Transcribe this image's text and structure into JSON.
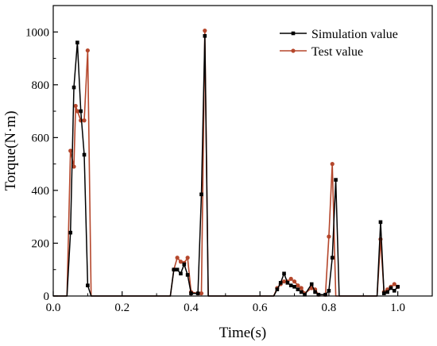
{
  "chart_data": {
    "type": "line",
    "xlabel": "Time(s)",
    "ylabel": "Torque(N·m)",
    "xlim": [
      0.0,
      1.1
    ],
    "ylim": [
      0,
      1100
    ],
    "xticks": [
      0.0,
      0.2,
      0.4,
      0.6,
      0.8,
      1.0
    ],
    "xtick_labels": [
      "0.0",
      "0.2",
      "0.4",
      "0.6",
      "0.8",
      "1.0"
    ],
    "yticks": [
      0,
      200,
      400,
      600,
      800,
      1000
    ],
    "ytick_labels": [
      "0",
      "200",
      "400",
      "600",
      "800",
      "1000"
    ],
    "grid": false,
    "legend_position": "top-right",
    "series": [
      {
        "name": "Simulation value",
        "color": "#000000",
        "marker": "square",
        "points": [
          [
            0.0,
            0
          ],
          [
            0.04,
            0
          ],
          [
            0.05,
            240
          ],
          [
            0.06,
            790
          ],
          [
            0.07,
            960
          ],
          [
            0.08,
            700
          ],
          [
            0.09,
            535
          ],
          [
            0.1,
            40
          ],
          [
            0.11,
            0
          ],
          [
            0.34,
            0
          ],
          [
            0.35,
            100
          ],
          [
            0.36,
            100
          ],
          [
            0.37,
            85
          ],
          [
            0.38,
            120
          ],
          [
            0.39,
            80
          ],
          [
            0.4,
            10
          ],
          [
            0.42,
            10
          ],
          [
            0.43,
            385
          ],
          [
            0.44,
            985
          ],
          [
            0.45,
            0
          ],
          [
            0.64,
            0
          ],
          [
            0.65,
            25
          ],
          [
            0.66,
            50
          ],
          [
            0.67,
            85
          ],
          [
            0.68,
            50
          ],
          [
            0.69,
            40
          ],
          [
            0.7,
            35
          ],
          [
            0.71,
            25
          ],
          [
            0.72,
            15
          ],
          [
            0.73,
            5
          ],
          [
            0.75,
            45
          ],
          [
            0.76,
            15
          ],
          [
            0.77,
            5
          ],
          [
            0.79,
            5
          ],
          [
            0.8,
            20
          ],
          [
            0.81,
            145
          ],
          [
            0.82,
            440
          ],
          [
            0.83,
            0
          ],
          [
            0.94,
            0
          ],
          [
            0.95,
            280
          ],
          [
            0.96,
            10
          ],
          [
            0.97,
            15
          ],
          [
            0.98,
            30
          ],
          [
            0.99,
            20
          ],
          [
            1.0,
            35
          ]
        ]
      },
      {
        "name": "Test value",
        "color": "#b5472c",
        "marker": "circle",
        "points": [
          [
            0.0,
            0
          ],
          [
            0.04,
            0
          ],
          [
            0.05,
            550
          ],
          [
            0.06,
            490
          ],
          [
            0.065,
            720
          ],
          [
            0.07,
            700
          ],
          [
            0.08,
            665
          ],
          [
            0.09,
            665
          ],
          [
            0.1,
            930
          ],
          [
            0.11,
            0
          ],
          [
            0.34,
            0
          ],
          [
            0.35,
            100
          ],
          [
            0.36,
            145
          ],
          [
            0.37,
            130
          ],
          [
            0.38,
            125
          ],
          [
            0.39,
            145
          ],
          [
            0.4,
            15
          ],
          [
            0.42,
            10
          ],
          [
            0.43,
            10
          ],
          [
            0.44,
            1005
          ],
          [
            0.45,
            0
          ],
          [
            0.64,
            0
          ],
          [
            0.65,
            30
          ],
          [
            0.66,
            45
          ],
          [
            0.67,
            55
          ],
          [
            0.68,
            55
          ],
          [
            0.69,
            65
          ],
          [
            0.7,
            55
          ],
          [
            0.71,
            40
          ],
          [
            0.72,
            30
          ],
          [
            0.73,
            10
          ],
          [
            0.75,
            30
          ],
          [
            0.76,
            25
          ],
          [
            0.77,
            5
          ],
          [
            0.79,
            5
          ],
          [
            0.8,
            225
          ],
          [
            0.81,
            500
          ],
          [
            0.82,
            0
          ],
          [
            0.94,
            0
          ],
          [
            0.95,
            215
          ],
          [
            0.96,
            15
          ],
          [
            0.97,
            25
          ],
          [
            0.98,
            35
          ],
          [
            0.99,
            45
          ],
          [
            1.0,
            35
          ]
        ]
      }
    ]
  }
}
